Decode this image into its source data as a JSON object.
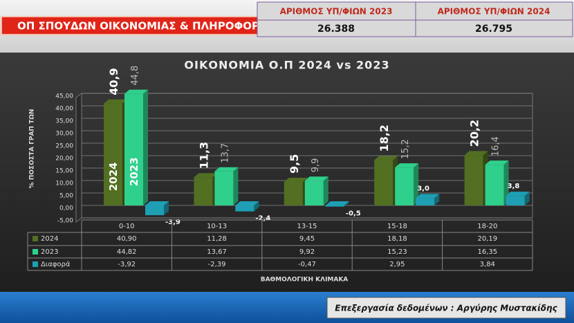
{
  "header": {
    "title": "ΟΠ ΣΠΟΥΔΩΝ ΟΙΚΟΝΟΜΙΑΣ & ΠΛΗΡΟΦΟΡΙΚΗΣ",
    "table": {
      "columns": [
        "ΑΡΙΘΜΟΣ ΥΠ/ΦΙΩΝ 2023",
        "ΑΡΙΘΜΟΣ ΥΠ/ΦΙΩΝ 2024"
      ],
      "values": [
        "26.388",
        "26.795"
      ]
    }
  },
  "chart_data": {
    "type": "bar",
    "title": "ΟΙΚΟΝΟΜΙΑ Ο.Π 2024 vs 2023",
    "y_label": "% ΠΟΣΟΣΤΑ ΓΡΑΠ ΤΩΝ",
    "x_label": "ΒΑΘΜΟΛΟΓΙΚΗ ΚΛΙΜΑΚΑ",
    "categories": [
      "0-10",
      "10-13",
      "13-15",
      "15-18",
      "18-20"
    ],
    "series": [
      {
        "name": "2024",
        "color": "#526f22",
        "values": [
          40.9,
          11.28,
          9.45,
          18.18,
          20.19
        ],
        "value_labels": [
          "40,9",
          "11,3",
          "9,5",
          "18,2",
          "20,2"
        ],
        "table_labels": [
          "40,90",
          "11,28",
          "9,45",
          "18,18",
          "20,19"
        ]
      },
      {
        "name": "2023",
        "color": "#2fd08c",
        "values": [
          44.82,
          13.67,
          9.92,
          15.23,
          16.35
        ],
        "value_labels": [
          "44,8",
          "13,7",
          "9,9",
          "15,2",
          "16,4"
        ],
        "table_labels": [
          "44,82",
          "13,67",
          "9,92",
          "15,23",
          "16,35"
        ]
      },
      {
        "name": "Διαφορά",
        "color": "#1e9fb3",
        "values": [
          -3.92,
          -2.39,
          -0.47,
          2.95,
          3.84
        ],
        "value_labels": [
          "-3,9",
          "-2,4",
          "-0,5",
          "3,0",
          "3,8"
        ],
        "table_labels": [
          "-3,92",
          "-2,39",
          "-0,47",
          "2,95",
          "3,84"
        ]
      }
    ],
    "ylim": [
      -5,
      45
    ],
    "yticks": [
      {
        "value": -5,
        "label": "-5,00"
      },
      {
        "value": 0,
        "label": "0,00"
      },
      {
        "value": 5,
        "label": "5,00"
      },
      {
        "value": 10,
        "label": "10,00"
      },
      {
        "value": 15,
        "label": "15,00"
      },
      {
        "value": 20,
        "label": "20,00"
      },
      {
        "value": 25,
        "label": "25,00"
      },
      {
        "value": 30,
        "label": "30,00"
      },
      {
        "value": 35,
        "label": "35,00"
      },
      {
        "value": 40,
        "label": "40,00"
      },
      {
        "value": 45,
        "label": "45,00"
      }
    ],
    "grid": true
  },
  "footer": {
    "credit": "Επεξεργασία δεδομένων : Αργύρης Μυστακίδης"
  }
}
